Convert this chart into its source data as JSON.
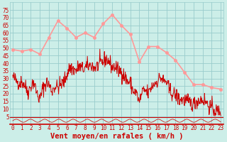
{
  "bg_color": "#cceee8",
  "grid_color": "#99cccc",
  "line_color_mean": "#cc0000",
  "line_color_gust": "#ff9999",
  "xlabel": "Vent moyen/en rafales ( km/h )",
  "ylim": [
    0,
    80
  ],
  "yticks": [
    5,
    10,
    15,
    20,
    25,
    30,
    35,
    40,
    45,
    50,
    55,
    60,
    65,
    70,
    75
  ],
  "hours": [
    0,
    1,
    2,
    3,
    4,
    5,
    6,
    7,
    8,
    9,
    10,
    11,
    12,
    13,
    14,
    15,
    16,
    17,
    18,
    19,
    20,
    21,
    22,
    23
  ],
  "gust_wind": [
    49,
    48,
    49,
    46,
    57,
    68,
    63,
    57,
    60,
    57,
    66,
    72,
    65,
    59,
    41,
    51,
    51,
    47,
    42,
    34,
    26,
    26,
    24,
    23
  ],
  "mean_anchors_x": [
    0,
    0.3,
    0.7,
    1.0,
    1.3,
    1.7,
    2.0,
    2.3,
    2.7,
    3.0,
    3.3,
    3.7,
    4.0,
    4.3,
    4.7,
    5.0,
    5.3,
    5.7,
    6.0,
    6.3,
    6.7,
    7.0,
    7.3,
    7.7,
    8.0,
    8.3,
    8.7,
    9.0,
    9.3,
    9.7,
    10.0,
    10.3,
    10.7,
    11.0,
    11.3,
    11.7,
    12.0,
    12.3,
    12.7,
    13.0,
    13.3,
    13.7,
    14.0,
    14.3,
    14.7,
    15.0,
    15.3,
    15.7,
    16.0,
    16.3,
    16.7,
    17.0,
    17.3,
    17.7,
    18.0,
    18.3,
    18.7,
    19.0,
    19.3,
    19.7,
    20.0,
    20.3,
    20.7,
    21.0,
    21.3,
    21.7,
    22.0,
    22.3,
    22.7,
    23.0
  ],
  "mean_anchors_y": [
    31,
    29,
    27,
    28,
    26,
    21,
    25,
    28,
    20,
    16,
    23,
    27,
    26,
    22,
    25,
    24,
    26,
    28,
    33,
    37,
    36,
    35,
    38,
    36,
    37,
    38,
    39,
    37,
    38,
    40,
    41,
    43,
    41,
    37,
    38,
    35,
    35,
    32,
    28,
    27,
    22,
    20,
    14,
    21,
    22,
    20,
    24,
    27,
    28,
    31,
    28,
    28,
    22,
    20,
    19,
    17,
    16,
    16,
    15,
    14,
    13,
    15,
    16,
    16,
    15,
    12,
    11,
    9,
    8,
    9
  ],
  "tick_label_size": 5.5,
  "xlabel_size": 7.5,
  "noise_seed": 42,
  "noise_scale": 2.5
}
